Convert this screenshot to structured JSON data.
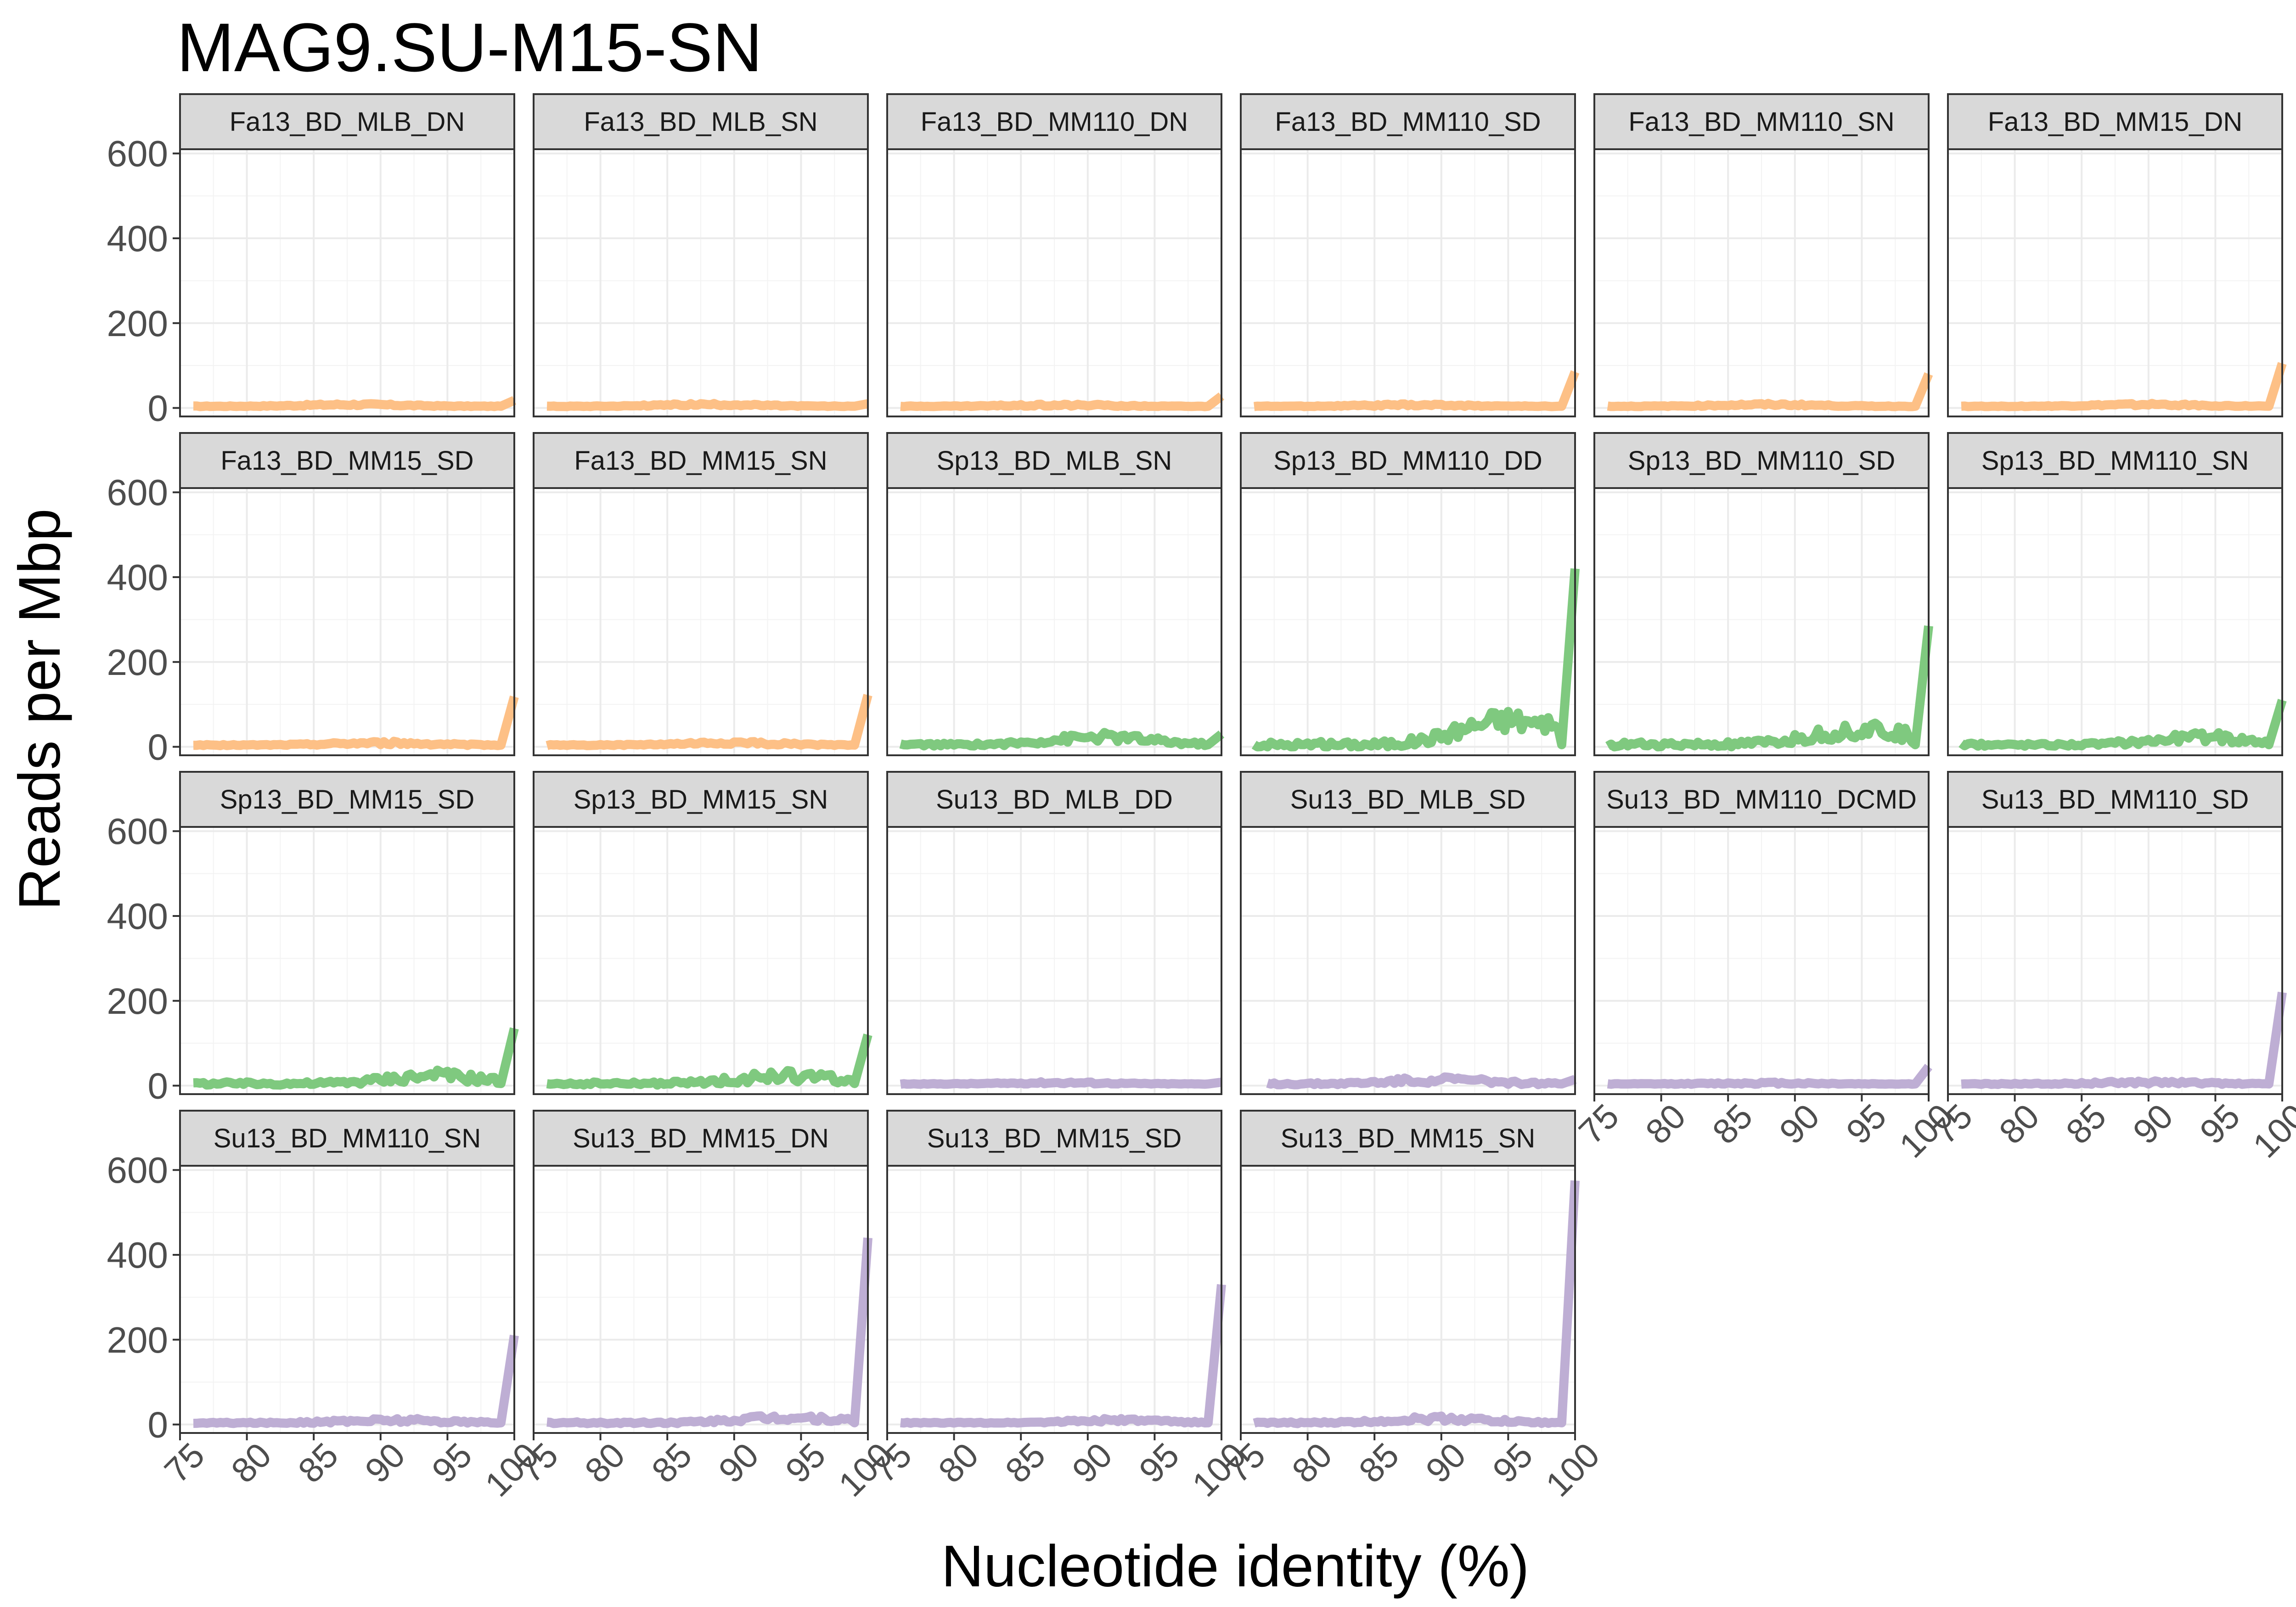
{
  "chart_data": {
    "type": "line",
    "title": "MAG9.SU-M15-SN",
    "xlabel": "Nucleotide identity (%)",
    "ylabel": "Reads per Mbp",
    "xlim": [
      75,
      100
    ],
    "ylim": [
      -20,
      610
    ],
    "x_ticks": [
      75,
      80,
      85,
      90,
      95,
      100
    ],
    "y_ticks": [
      0,
      200,
      400,
      600
    ],
    "grid": true,
    "legend": "none",
    "facet_columns": 6,
    "season_colors": {
      "Fa13": "#fdc086",
      "Sp13": "#7fc97f",
      "Su13": "#beaed4"
    },
    "panels": [
      {
        "name": "Fa13_BD_MLB_DN",
        "season": "Fa13",
        "x_start": 76,
        "end_x": 100,
        "base": 4,
        "bump": 4,
        "bump_center": 88,
        "jitter": 2,
        "spike": 18
      },
      {
        "name": "Fa13_BD_MLB_SN",
        "season": "Fa13",
        "x_start": 76,
        "end_x": 100,
        "base": 4,
        "bump": 4,
        "bump_center": 88,
        "jitter": 2,
        "spike": 10
      },
      {
        "name": "Fa13_BD_MM110_DN",
        "season": "Fa13",
        "x_start": 76,
        "end_x": 100,
        "base": 4,
        "bump": 3,
        "bump_center": 88,
        "jitter": 2,
        "spike": 28
      },
      {
        "name": "Fa13_BD_MM110_SD",
        "season": "Fa13",
        "x_start": 76,
        "end_x": 100,
        "base": 4,
        "bump": 3,
        "bump_center": 88,
        "jitter": 2,
        "spike": 85
      },
      {
        "name": "Fa13_BD_MM110_SN",
        "season": "Fa13",
        "x_start": 76,
        "end_x": 100,
        "base": 4,
        "bump": 4,
        "bump_center": 88,
        "jitter": 2,
        "spike": 80
      },
      {
        "name": "Fa13_BD_MM15_DN",
        "season": "Fa13",
        "x_start": 76,
        "end_x": 100,
        "base": 4,
        "bump": 4,
        "bump_center": 90,
        "jitter": 2,
        "spike": 105
      },
      {
        "name": "Fa13_BD_MM15_SD",
        "season": "Fa13",
        "x_start": 76,
        "end_x": 100,
        "base": 4,
        "bump": 5,
        "bump_center": 90,
        "jitter": 3,
        "spike": 118
      },
      {
        "name": "Fa13_BD_MM15_SN",
        "season": "Fa13",
        "x_start": 76,
        "end_x": 100,
        "base": 4,
        "bump": 5,
        "bump_center": 90,
        "jitter": 3,
        "spike": 122
      },
      {
        "name": "Sp13_BD_MLB_SN",
        "season": "Sp13",
        "x_start": 76,
        "end_x": 100,
        "base": 5,
        "bump": 18,
        "bump_center": 91,
        "jitter": 8,
        "spike": 30
      },
      {
        "name": "Sp13_BD_MM110_DD",
        "season": "Sp13",
        "x_start": 76,
        "end_x": 100,
        "base": 5,
        "bump": 60,
        "bump_center": 95,
        "jitter": 20,
        "spike": 420
      },
      {
        "name": "Sp13_BD_MM110_SD",
        "season": "Sp13",
        "x_start": 76,
        "end_x": 100,
        "base": 5,
        "bump": 35,
        "bump_center": 95,
        "jitter": 16,
        "spike": 285
      },
      {
        "name": "Sp13_BD_MM110_SN",
        "season": "Sp13",
        "x_start": 76,
        "end_x": 100,
        "base": 5,
        "bump": 18,
        "bump_center": 94,
        "jitter": 9,
        "spike": 110
      },
      {
        "name": "Sp13_BD_MM15_SD",
        "season": "Sp13",
        "x_start": 76,
        "end_x": 100,
        "base": 5,
        "bump": 18,
        "bump_center": 94,
        "jitter": 10,
        "spike": 135
      },
      {
        "name": "Sp13_BD_MM15_SN",
        "season": "Sp13",
        "x_start": 76,
        "end_x": 100,
        "base": 5,
        "bump": 18,
        "bump_center": 94,
        "jitter": 10,
        "spike": 120
      },
      {
        "name": "Su13_BD_MLB_DD",
        "season": "Su13",
        "x_start": 76,
        "end_x": 100,
        "base": 4,
        "bump": 3,
        "bump_center": 88,
        "jitter": 2,
        "spike": 8
      },
      {
        "name": "Su13_BD_MLB_SD",
        "season": "Su13",
        "x_start": 77,
        "end_x": 100,
        "base": 4,
        "bump": 10,
        "bump_center": 90,
        "jitter": 6,
        "spike": 15
      },
      {
        "name": "Su13_BD_MM110_DCMD",
        "season": "Su13",
        "x_start": 76,
        "end_x": 100,
        "base": 4,
        "bump": 2,
        "bump_center": 88,
        "jitter": 2,
        "spike": 45
      },
      {
        "name": "Su13_BD_MM110_SD",
        "season": "Su13",
        "x_start": 76,
        "end_x": 100,
        "base": 4,
        "bump": 4,
        "bump_center": 90,
        "jitter": 3,
        "spike": 220
      },
      {
        "name": "Su13_BD_MM110_SN",
        "season": "Su13",
        "x_start": 76,
        "end_x": 100,
        "base": 4,
        "bump": 6,
        "bump_center": 91,
        "jitter": 4,
        "spike": 210
      },
      {
        "name": "Su13_BD_MM15_DN",
        "season": "Su13",
        "x_start": 76,
        "end_x": 100,
        "base": 4,
        "bump": 12,
        "bump_center": 94,
        "jitter": 6,
        "spike": 440
      },
      {
        "name": "Su13_BD_MM15_SD",
        "season": "Su13",
        "x_start": 76,
        "end_x": 100,
        "base": 4,
        "bump": 6,
        "bump_center": 92,
        "jitter": 3,
        "spike": 330
      },
      {
        "name": "Su13_BD_MM15_SN",
        "season": "Su13",
        "x_start": 76,
        "end_x": 100,
        "base": 4,
        "bump": 10,
        "bump_center": 90,
        "jitter": 5,
        "spike": 575
      }
    ]
  }
}
